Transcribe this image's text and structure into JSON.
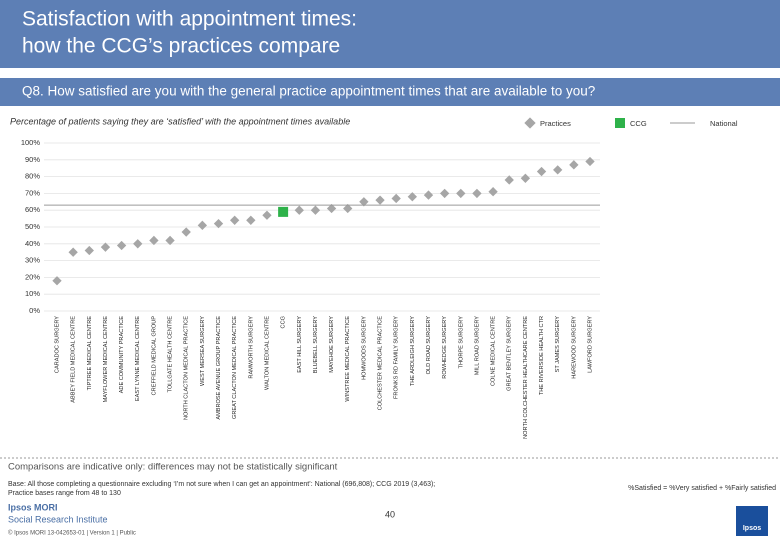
{
  "header": {
    "title_line1": "Satisfaction with appointment times:",
    "title_line2": "how the CCG’s practices compare",
    "question": "Q8. How satisfied are you with the general practice appointment times that are available to you?"
  },
  "chart_data": {
    "type": "scatter",
    "subtitle": "Percentage of patients saying they are ‘satisfied’ with the appointment times available",
    "categories": [
      "CARADOC SURGERY",
      "ABBEY FIELD MEDICAL CENTRE",
      "TIPTREE MEDICAL CENTRE",
      "MAYFLOWER MEDICAL CENTRE",
      "ADE COMMUNITY PRACTICE",
      "EAST LYNNE MEDICAL CENTRE",
      "CREFFIELD MEDICAL GROUP",
      "TOLLGATE HEALTH CENTRE",
      "NORTH CLACTON MEDICAL PRACTICE",
      "WEST MERSEA SURGERY",
      "AMBROSE AVENUE GROUP PRACTICE",
      "GREAT CLACTON MEDICAL PRACTICE",
      "RAMWORTH SURGERY",
      "WALTON MEDICAL CENTRE",
      "CCG",
      "EAST HILL SURGERY",
      "BLUEBELL SURGERY",
      "MAYEHOE SURGERY",
      "WINSTREE MEDICAL PRACTICE",
      "HOMWOODS SURGERY",
      "COLCHESTER MEDICAL PRACTICE",
      "FRONKS RD FAMILY SURGERY",
      "THE ARDLEIGH SURGERY",
      "OLD ROAD SURGERY",
      "ROWHEDGE SURGERY",
      "THORPE SURGERY",
      "MILL ROAD SURGERY",
      "COLNE MEDICAL CENTRE",
      "GREAT BENTLEY SURGERY",
      "NORTH COLCHESTER HEALTHCARE CENTRE",
      "THE RIVERSIDE HEALTH CTR",
      "ST JAMES SURGERY",
      "HAREWOOD SURGERY",
      "LAWFORD SURGERY"
    ],
    "series": [
      {
        "name": "Practices",
        "color": "#a6a6a6",
        "values": [
          18,
          35,
          36,
          38,
          39,
          40,
          42,
          42,
          47,
          51,
          52,
          54,
          54,
          57,
          null,
          60,
          60,
          61,
          61,
          65,
          66,
          67,
          68,
          69,
          70,
          70,
          70,
          71,
          78,
          79,
          83,
          84,
          87,
          89
        ]
      },
      {
        "name": "CCG",
        "color": "#2eb24a",
        "values": [
          null,
          null,
          null,
          null,
          null,
          null,
          null,
          null,
          null,
          null,
          null,
          null,
          null,
          null,
          59,
          null,
          null,
          null,
          null,
          null,
          null,
          null,
          null,
          null,
          null,
          null,
          null,
          null,
          null,
          null,
          null,
          null,
          null,
          null
        ]
      },
      {
        "name": "National",
        "color": "#9a9a9a",
        "value": 63
      }
    ],
    "ylim": [
      0,
      100
    ],
    "yticks": [
      {
        "value": 0,
        "label": "0%"
      },
      {
        "value": 10,
        "label": "10%"
      },
      {
        "value": 20,
        "label": "20%"
      },
      {
        "value": 30,
        "label": "30%"
      },
      {
        "value": 40,
        "label": "40%"
      },
      {
        "value": 50,
        "label": "50%"
      },
      {
        "value": 60,
        "label": "60%"
      },
      {
        "value": 70,
        "label": "70%"
      },
      {
        "value": 80,
        "label": "80%"
      },
      {
        "value": 90,
        "label": "90%"
      },
      {
        "value": 100,
        "label": "100%"
      }
    ],
    "grid": true
  },
  "footer": {
    "note": "Comparisons are indicative only: differences may not be statistically significant",
    "base_line1": "Base: All those completing a questionnaire excluding ‘I’m not sure when I can get an appointment’: National (696,808); CCG 2019 (3,463);",
    "base_line2": "Practice bases range from 48 to 130",
    "definition": "%Satisfied = %Very satisfied + %Fairly satisfied",
    "page": "40",
    "brand1": "Ipsos MORI",
    "brand2": "Social Research Institute",
    "copyright": "© Ipsos MORI     13-042653-01 | Version 1 | Public",
    "logo": "Ipsos"
  }
}
